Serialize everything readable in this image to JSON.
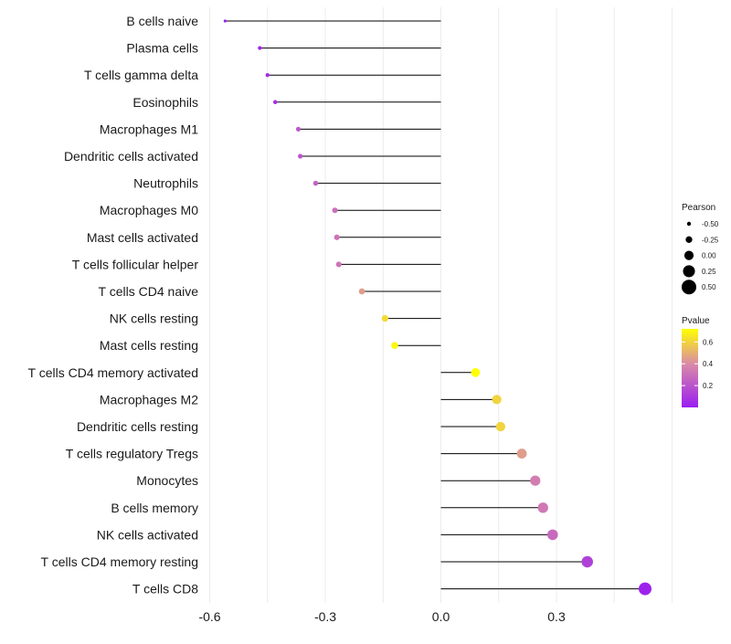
{
  "chart_data": {
    "type": "lollipop",
    "categories": [
      "B cells naive",
      "Plasma cells",
      "T cells gamma delta",
      "Eosinophils",
      "Macrophages M1",
      "Dendritic cells activated",
      "Neutrophils",
      "Macrophages M0",
      "Mast cells activated",
      "T cells follicular helper",
      "T cells CD4 naive",
      "NK cells resting",
      "Mast cells resting",
      "T cells CD4 memory activated",
      "Macrophages M2",
      "Dendritic cells resting",
      "T cells regulatory  Tregs ",
      "Monocytes",
      "B cells memory",
      "NK cells activated",
      "T cells CD4 memory resting",
      "T cells CD8"
    ],
    "pearson": [
      -0.56,
      -0.47,
      -0.45,
      -0.43,
      -0.37,
      -0.365,
      -0.325,
      -0.275,
      -0.27,
      -0.265,
      -0.205,
      -0.145,
      -0.12,
      0.09,
      0.145,
      0.155,
      0.21,
      0.245,
      0.265,
      0.29,
      0.38,
      0.53
    ],
    "pvalue": [
      0.01,
      0.03,
      0.05,
      0.06,
      0.2,
      0.2,
      0.25,
      0.3,
      0.31,
      0.32,
      0.45,
      0.62,
      0.7,
      0.72,
      0.6,
      0.6,
      0.45,
      0.35,
      0.33,
      0.28,
      0.13,
      0.02
    ],
    "xlim": [
      -0.6,
      0.6
    ],
    "x_ticks": [
      -0.6,
      -0.3,
      0.0,
      0.3
    ],
    "x_tick_labels": [
      "-0.6",
      "-0.3",
      "0.0",
      "0.3"
    ],
    "xlabel": "",
    "ylabel": "",
    "grid": true,
    "legend": {
      "placement": "right",
      "size_title": "Pearson",
      "size_values": [
        -0.5,
        -0.25,
        0.0,
        0.25,
        0.5
      ],
      "size_labels": [
        "-0.50",
        "-0.25",
        "0.00",
        "0.25",
        "0.50"
      ],
      "color_title": "Pvalue",
      "color_range": [
        0.0,
        0.72
      ],
      "color_ticks": [
        0.2,
        0.4,
        0.6
      ],
      "color_tick_labels": [
        "0.2",
        "0.4",
        "0.6"
      ]
    },
    "colors": {
      "low": "#9a1ef0",
      "mid": "#d98aa8",
      "high": "#ffff00",
      "stem": "#000000",
      "grid": "#ececec"
    }
  }
}
